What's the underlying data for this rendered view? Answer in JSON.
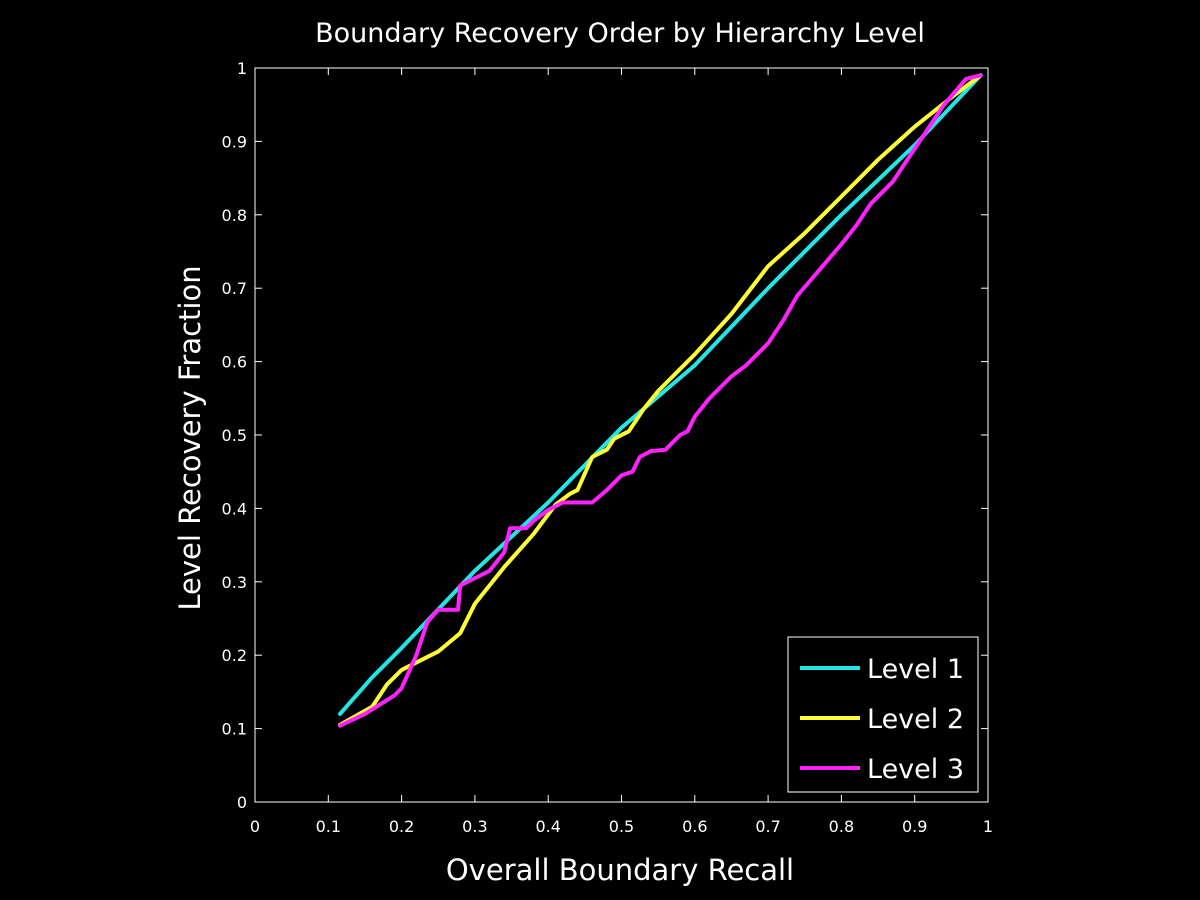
{
  "chart_data": {
    "type": "line",
    "title": "Boundary Recovery Order by Hierarchy Level",
    "xlabel": "Overall Boundary Recall",
    "ylabel": "Level Recovery Fraction",
    "xlim": [
      0,
      1
    ],
    "ylim": [
      0,
      1
    ],
    "xticks": [
      "0",
      "0.1",
      "0.2",
      "0.3",
      "0.4",
      "0.5",
      "0.6",
      "0.7",
      "0.8",
      "0.9",
      "1"
    ],
    "yticks": [
      "0",
      "0.1",
      "0.2",
      "0.3",
      "0.4",
      "0.5",
      "0.6",
      "0.7",
      "0.8",
      "0.9",
      "1"
    ],
    "grid": false,
    "legend_position": "bottom-right",
    "background": "#000000",
    "foreground": "#ffffff",
    "series": [
      {
        "name": "Level 1",
        "color": "#22e5e5",
        "points": [
          [
            0.116,
            0.12
          ],
          [
            0.16,
            0.17
          ],
          [
            0.2,
            0.21
          ],
          [
            0.3,
            0.315
          ],
          [
            0.4,
            0.408
          ],
          [
            0.5,
            0.51
          ],
          [
            0.6,
            0.595
          ],
          [
            0.7,
            0.7
          ],
          [
            0.8,
            0.8
          ],
          [
            0.9,
            0.895
          ],
          [
            0.99,
            0.99
          ]
        ]
      },
      {
        "name": "Level 2",
        "color": "#ffff33",
        "points": [
          [
            0.116,
            0.105
          ],
          [
            0.16,
            0.13
          ],
          [
            0.18,
            0.16
          ],
          [
            0.2,
            0.18
          ],
          [
            0.24,
            0.2
          ],
          [
            0.25,
            0.205
          ],
          [
            0.28,
            0.23
          ],
          [
            0.3,
            0.27
          ],
          [
            0.34,
            0.32
          ],
          [
            0.38,
            0.365
          ],
          [
            0.41,
            0.405
          ],
          [
            0.43,
            0.42
          ],
          [
            0.44,
            0.425
          ],
          [
            0.46,
            0.47
          ],
          [
            0.48,
            0.48
          ],
          [
            0.49,
            0.495
          ],
          [
            0.51,
            0.505
          ],
          [
            0.53,
            0.535
          ],
          [
            0.55,
            0.56
          ],
          [
            0.6,
            0.61
          ],
          [
            0.65,
            0.665
          ],
          [
            0.7,
            0.73
          ],
          [
            0.75,
            0.775
          ],
          [
            0.8,
            0.825
          ],
          [
            0.85,
            0.875
          ],
          [
            0.9,
            0.92
          ],
          [
            0.95,
            0.96
          ],
          [
            0.99,
            0.99
          ]
        ]
      },
      {
        "name": "Level 3",
        "color": "#ff22ff",
        "points": [
          [
            0.116,
            0.104
          ],
          [
            0.15,
            0.12
          ],
          [
            0.19,
            0.145
          ],
          [
            0.2,
            0.155
          ],
          [
            0.22,
            0.2
          ],
          [
            0.235,
            0.245
          ],
          [
            0.25,
            0.262
          ],
          [
            0.277,
            0.262
          ],
          [
            0.28,
            0.295
          ],
          [
            0.3,
            0.305
          ],
          [
            0.32,
            0.315
          ],
          [
            0.34,
            0.34
          ],
          [
            0.348,
            0.373
          ],
          [
            0.37,
            0.373
          ],
          [
            0.38,
            0.383
          ],
          [
            0.4,
            0.398
          ],
          [
            0.42,
            0.408
          ],
          [
            0.46,
            0.408
          ],
          [
            0.48,
            0.425
          ],
          [
            0.5,
            0.445
          ],
          [
            0.515,
            0.45
          ],
          [
            0.525,
            0.47
          ],
          [
            0.54,
            0.478
          ],
          [
            0.56,
            0.48
          ],
          [
            0.57,
            0.49
          ],
          [
            0.58,
            0.5
          ],
          [
            0.59,
            0.505
          ],
          [
            0.6,
            0.525
          ],
          [
            0.62,
            0.55
          ],
          [
            0.65,
            0.58
          ],
          [
            0.67,
            0.595
          ],
          [
            0.7,
            0.625
          ],
          [
            0.72,
            0.655
          ],
          [
            0.74,
            0.69
          ],
          [
            0.77,
            0.725
          ],
          [
            0.8,
            0.76
          ],
          [
            0.82,
            0.785
          ],
          [
            0.84,
            0.815
          ],
          [
            0.87,
            0.845
          ],
          [
            0.9,
            0.89
          ],
          [
            0.94,
            0.95
          ],
          [
            0.97,
            0.985
          ],
          [
            0.99,
            0.99
          ]
        ]
      }
    ]
  }
}
